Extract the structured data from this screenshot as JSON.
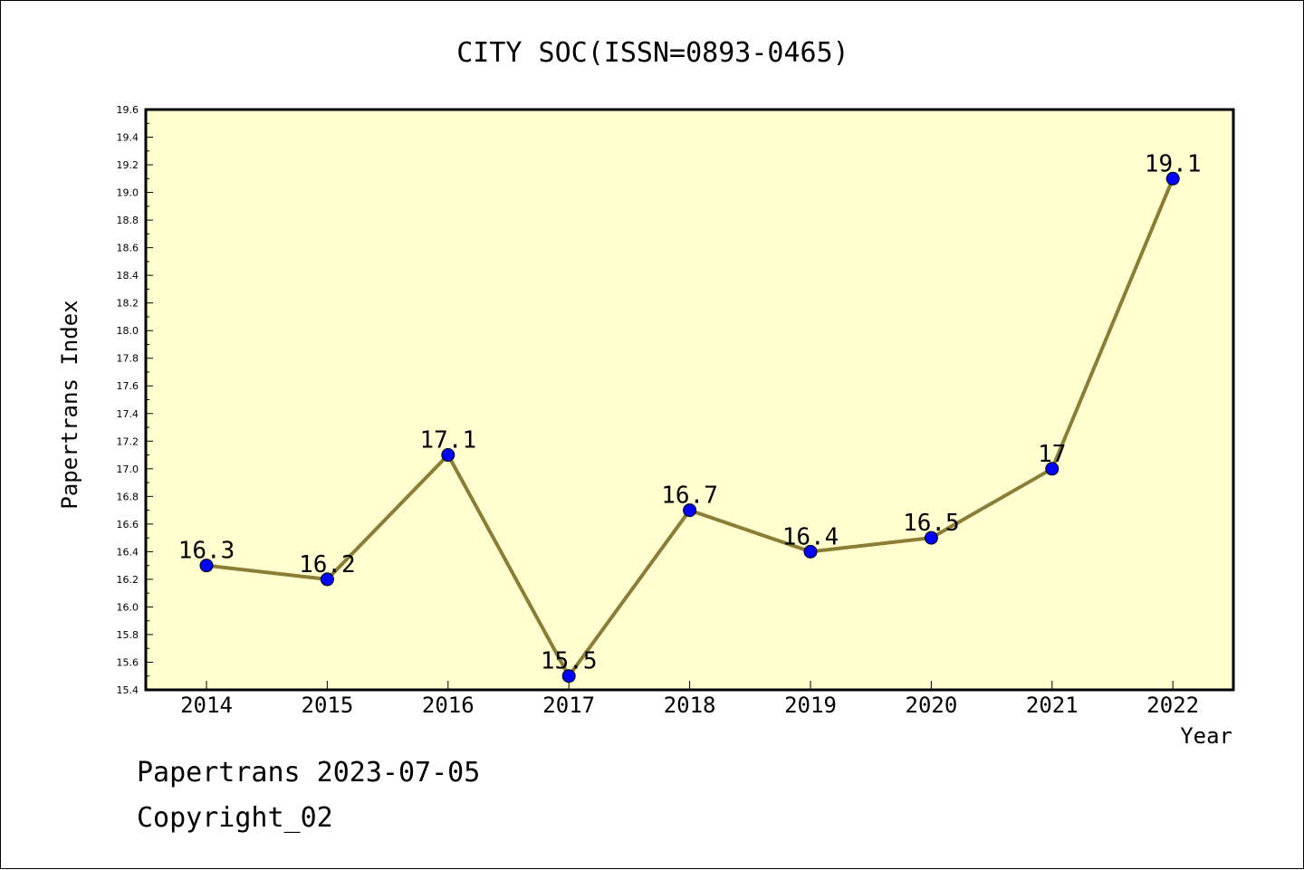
{
  "chart_data": {
    "type": "line",
    "title": "CITY SOC(ISSN=0893-0465)",
    "xlabel": "Year",
    "ylabel": "Papertrans Index",
    "categories": [
      "2014",
      "2015",
      "2016",
      "2017",
      "2018",
      "2019",
      "2020",
      "2021",
      "2022"
    ],
    "series": [
      {
        "values": [
          16.3,
          16.2,
          17.1,
          15.5,
          16.7,
          16.4,
          16.5,
          17.0,
          19.1
        ],
        "labels": [
          "16.3",
          "16.2",
          "17.1",
          "15.5",
          "16.7",
          "16.4",
          "16.5",
          "17",
          "19.1"
        ]
      }
    ],
    "ylim": [
      15.4,
      19.6
    ],
    "yticks": [
      "15.4",
      "15.6",
      "15.8",
      "16.0",
      "16.2",
      "16.4",
      "16.6",
      "16.8",
      "17.0",
      "17.2",
      "17.4",
      "17.6",
      "17.8",
      "18.0",
      "18.2",
      "18.4",
      "18.6",
      "18.8",
      "19.0",
      "19.2",
      "19.4",
      "19.6"
    ],
    "grid": false,
    "legend": "none",
    "colors": {
      "plot_background": "#ffffd0",
      "line": "#8b7d35",
      "marker": "#0000ff",
      "axis": "#000000"
    }
  },
  "footer": {
    "line1": "Papertrans 2023-07-05",
    "line2": "Copyright_02"
  }
}
